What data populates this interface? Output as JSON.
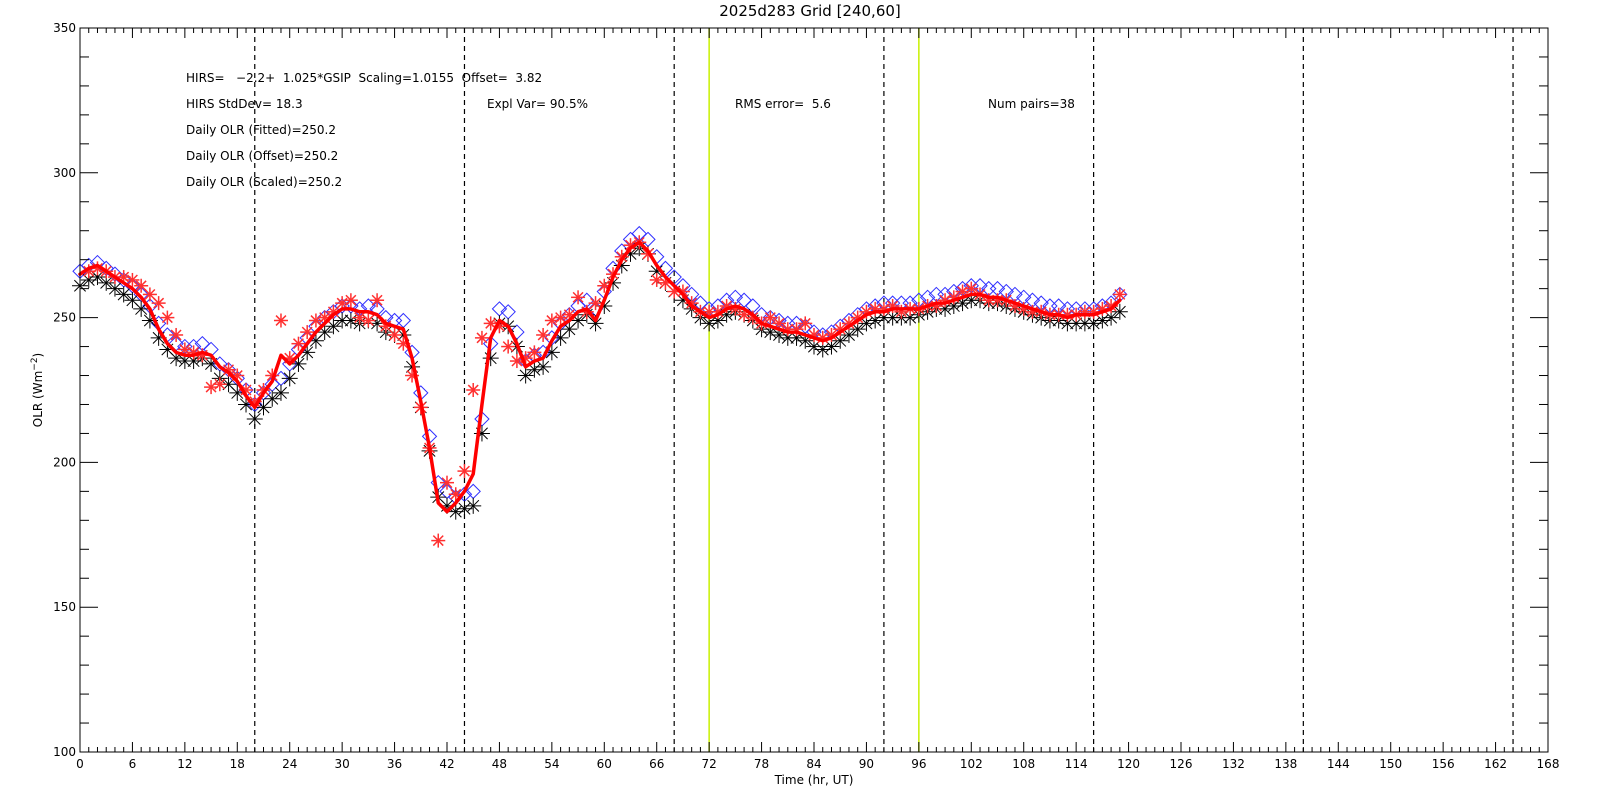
{
  "chart_data": {
    "type": "line",
    "title": "2025d283 Grid [240,60]",
    "xlabel": "Time (hr, UT)",
    "ylabel": "OLR (Wm",
    "ylabel_sup": "−2",
    "ylabel_close": ")",
    "xlim": [
      0,
      168
    ],
    "ylim": [
      100,
      350
    ],
    "x_ticks": [
      "0",
      "6",
      "12",
      "18",
      "24",
      "30",
      "36",
      "42",
      "48",
      "54",
      "60",
      "66",
      "72",
      "78",
      "84",
      "90",
      "96",
      "102",
      "108",
      "114",
      "120",
      "126",
      "132",
      "138",
      "144",
      "150",
      "156",
      "162",
      "168"
    ],
    "y_ticks": [
      "100",
      "150",
      "200",
      "250",
      "300",
      "350"
    ],
    "grid": false,
    "dashed_vlines": [
      20,
      44,
      68,
      92,
      116,
      140,
      164
    ],
    "green_vlines": [
      72,
      96
    ],
    "colors": {
      "fitted": "#ff0000",
      "hirs": "#ff3030",
      "offset": "#3030ff",
      "gsip": "#000000",
      "green_line": "#c8f000",
      "dashed_line": "#000000"
    },
    "annotations": [
      "HIRS=   −2.2+  1.025*GSIP  Scaling=1.0155  Offset=  3.82",
      "HIRS StdDev= 18.3",
      "Expl Var= 90.5%",
      "RMS error=  5.6",
      "Num pairs=38",
      "Daily OLR (Fitted)=250.2",
      "Daily OLR (Offset)=250.2",
      "Daily OLR (Scaled)=250.2"
    ],
    "x": [
      0,
      1,
      2,
      3,
      4,
      5,
      6,
      7,
      8,
      9,
      10,
      11,
      12,
      13,
      14,
      15,
      16,
      17,
      18,
      19,
      20,
      21,
      22,
      23,
      24,
      25,
      26,
      27,
      28,
      29,
      30,
      31,
      32,
      33,
      34,
      35,
      36,
      37,
      38,
      39,
      40,
      41,
      42,
      43,
      44,
      45,
      46,
      47,
      48,
      49,
      50,
      51,
      52,
      53,
      54,
      55,
      56,
      57,
      58,
      59,
      60,
      61,
      62,
      63,
      64,
      65,
      66,
      67,
      68,
      69,
      70,
      71,
      72,
      73,
      74,
      75,
      76,
      77,
      78,
      79,
      80,
      81,
      82,
      83,
      84,
      85,
      86,
      87,
      88,
      89,
      90,
      91,
      92,
      93,
      94,
      95,
      96,
      97,
      98,
      99,
      100,
      101,
      102,
      103,
      104,
      105,
      106,
      107,
      108,
      109,
      110,
      111,
      112,
      113,
      114,
      115,
      116,
      117,
      118,
      119
    ],
    "series": [
      {
        "name": "GSIP",
        "marker": "asterisk",
        "values": [
          261,
          263,
          264,
          262,
          260,
          258,
          256,
          253,
          249,
          243,
          239,
          236,
          235,
          235,
          236,
          234,
          229,
          227,
          224,
          220,
          215,
          219,
          222,
          224,
          229,
          234,
          238,
          242,
          245,
          247,
          249,
          249,
          248,
          249,
          248,
          245,
          244,
          244,
          233,
          219,
          204,
          188,
          185,
          183,
          184,
          185,
          210,
          236,
          248,
          247,
          240,
          230,
          232,
          233,
          238,
          243,
          246,
          249,
          251,
          248,
          254,
          262,
          268,
          272,
          274,
          272,
          266,
          262,
          259,
          256,
          253,
          250,
          248,
          249,
          251,
          252,
          251,
          249,
          246,
          245,
          244,
          243,
          243,
          242,
          240,
          239,
          240,
          242,
          244,
          246,
          248,
          249,
          250,
          250,
          250,
          250,
          251,
          252,
          253,
          253,
          254,
          255,
          256,
          256,
          255,
          255,
          254,
          253,
          252,
          251,
          250,
          249,
          249,
          248,
          248,
          248,
          248,
          249,
          250,
          252
        ]
      },
      {
        "name": "Offset",
        "marker": "diamond",
        "values": [
          266,
          268,
          269,
          267,
          265,
          263,
          261,
          258,
          254,
          248,
          244,
          241,
          240,
          240,
          241,
          239,
          234,
          232,
          229,
          225,
          220,
          224,
          227,
          229,
          234,
          239,
          243,
          247,
          250,
          252,
          254,
          254,
          253,
          254,
          253,
          250,
          249,
          249,
          238,
          224,
          209,
          193,
          190,
          188,
          189,
          190,
          215,
          241,
          253,
          252,
          245,
          235,
          237,
          238,
          243,
          248,
          251,
          254,
          256,
          253,
          259,
          267,
          273,
          277,
          279,
          277,
          271,
          267,
          264,
          261,
          258,
          255,
          253,
          254,
          256,
          257,
          256,
          254,
          251,
          250,
          249,
          248,
          248,
          247,
          245,
          244,
          245,
          247,
          249,
          251,
          253,
          254,
          255,
          255,
          255,
          255,
          256,
          257,
          258,
          258,
          259,
          260,
          261,
          261,
          260,
          260,
          259,
          258,
          257,
          256,
          255,
          254,
          254,
          253,
          253,
          253,
          253,
          254,
          255,
          258
        ]
      },
      {
        "name": "Fitted",
        "marker": "line",
        "values": [
          265,
          267,
          268,
          266,
          264,
          262,
          260,
          257,
          253,
          246,
          241,
          238,
          237,
          237,
          238,
          237,
          233,
          231,
          228,
          223,
          219,
          224,
          228,
          237,
          234,
          237,
          241,
          245,
          248,
          251,
          253,
          253,
          252,
          252,
          251,
          248,
          247,
          246,
          236,
          221,
          205,
          186,
          183,
          186,
          190,
          196,
          220,
          243,
          249,
          247,
          241,
          233,
          235,
          236,
          242,
          247,
          249,
          252,
          253,
          249,
          256,
          264,
          270,
          274,
          276,
          273,
          268,
          264,
          261,
          258,
          254,
          252,
          250,
          251,
          253,
          254,
          253,
          251,
          248,
          247,
          246,
          245,
          245,
          244,
          243,
          242,
          243,
          245,
          247,
          249,
          251,
          252,
          252,
          253,
          253,
          253,
          253,
          254,
          255,
          255,
          256,
          257,
          258,
          258,
          257,
          257,
          256,
          255,
          254,
          253,
          252,
          251,
          251,
          250,
          251,
          251,
          251,
          252,
          253,
          256
        ]
      },
      {
        "name": "HIRS",
        "marker": "asterisk",
        "points": [
          [
            1,
            266
          ],
          [
            2,
            267
          ],
          [
            3,
            266
          ],
          [
            4,
            264
          ],
          [
            5,
            264
          ],
          [
            6,
            263
          ],
          [
            7,
            261
          ],
          [
            8,
            258
          ],
          [
            9,
            255
          ],
          [
            10,
            250
          ],
          [
            11,
            244
          ],
          [
            12,
            239
          ],
          [
            13,
            238
          ],
          [
            14,
            237
          ],
          [
            15,
            226
          ],
          [
            16,
            227
          ],
          [
            17,
            232
          ],
          [
            18,
            230
          ],
          [
            19,
            225
          ],
          [
            20,
            221
          ],
          [
            21,
            225
          ],
          [
            22,
            230
          ],
          [
            23,
            249
          ],
          [
            24,
            236
          ],
          [
            25,
            241
          ],
          [
            26,
            245
          ],
          [
            27,
            249
          ],
          [
            28,
            250
          ],
          [
            29,
            252
          ],
          [
            30,
            255
          ],
          [
            31,
            256
          ],
          [
            32,
            250
          ],
          [
            33,
            249
          ],
          [
            34,
            256
          ],
          [
            35,
            247
          ],
          [
            36,
            244
          ],
          [
            37,
            241
          ],
          [
            38,
            230
          ],
          [
            39,
            219
          ],
          [
            40,
            205
          ],
          [
            41,
            173
          ],
          [
            42,
            193
          ],
          [
            43,
            189
          ],
          [
            44,
            197
          ],
          [
            45,
            225
          ],
          [
            46,
            243
          ],
          [
            47,
            248
          ],
          [
            48,
            247
          ],
          [
            49,
            240
          ],
          [
            50,
            235
          ],
          [
            51,
            236
          ],
          [
            52,
            238
          ],
          [
            53,
            244
          ],
          [
            54,
            249
          ],
          [
            55,
            250
          ],
          [
            56,
            251
          ],
          [
            57,
            257
          ],
          [
            58,
            252
          ],
          [
            59,
            255
          ],
          [
            60,
            261
          ],
          [
            61,
            265
          ],
          [
            62,
            271
          ],
          [
            63,
            275
          ],
          [
            64,
            276
          ],
          [
            65,
            272
          ],
          [
            66,
            263
          ],
          [
            67,
            262
          ],
          [
            68,
            259
          ],
          [
            69,
            259
          ],
          [
            70,
            255
          ],
          [
            71,
            252
          ],
          [
            72,
            252
          ],
          [
            73,
            252
          ],
          [
            74,
            254
          ],
          [
            75,
            253
          ],
          [
            76,
            251
          ],
          [
            77,
            250
          ],
          [
            78,
            248
          ],
          [
            79,
            250
          ],
          [
            80,
            248
          ],
          [
            81,
            246
          ],
          [
            82,
            246
          ],
          [
            83,
            248
          ],
          [
            84,
            244
          ],
          [
            85,
            243
          ],
          [
            86,
            244
          ],
          [
            87,
            246
          ],
          [
            88,
            248
          ],
          [
            89,
            250
          ],
          [
            90,
            252
          ],
          [
            91,
            253
          ],
          [
            92,
            253
          ],
          [
            93,
            254
          ],
          [
            94,
            252
          ],
          [
            95,
            253
          ],
          [
            96,
            253
          ],
          [
            97,
            254
          ],
          [
            98,
            254
          ],
          [
            99,
            256
          ],
          [
            100,
            257
          ],
          [
            101,
            259
          ],
          [
            102,
            260
          ],
          [
            103,
            258
          ],
          [
            104,
            256
          ],
          [
            105,
            256
          ],
          [
            106,
            256
          ],
          [
            107,
            254
          ],
          [
            108,
            253
          ],
          [
            109,
            252
          ],
          [
            110,
            252
          ],
          [
            111,
            251
          ],
          [
            112,
            251
          ],
          [
            113,
            251
          ],
          [
            114,
            251
          ],
          [
            115,
            252
          ],
          [
            116,
            252
          ],
          [
            117,
            253
          ],
          [
            118,
            254
          ],
          [
            119,
            258
          ]
        ]
      }
    ]
  }
}
